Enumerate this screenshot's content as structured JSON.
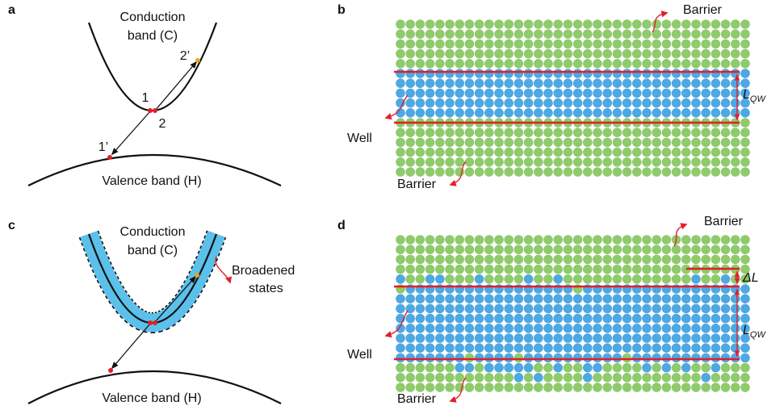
{
  "panels": [
    {
      "label": "a",
      "conduction_band": [
        "Conduction",
        "band (C)"
      ],
      "valence_band": "Valence band (H)",
      "points": [
        "1",
        "2",
        "1’",
        "2’"
      ]
    },
    {
      "label": "b",
      "barrier_top": "Barrier",
      "well": "Well",
      "barrier_bottom": "Barrier",
      "thickness": {
        "symbol": "L",
        "subscript": "QW"
      }
    },
    {
      "label": "c",
      "conduction_band": [
        "Conduction",
        "band (C)"
      ],
      "valence_band": "Valence band (H)",
      "broadened": [
        "Broadened",
        "states"
      ]
    },
    {
      "label": "d",
      "barrier_top": "Barrier",
      "well": "Well",
      "barrier_bottom": "Barrier",
      "thickness": {
        "symbol": "L",
        "subscript": "QW"
      },
      "delta": "ΔL"
    }
  ]
}
